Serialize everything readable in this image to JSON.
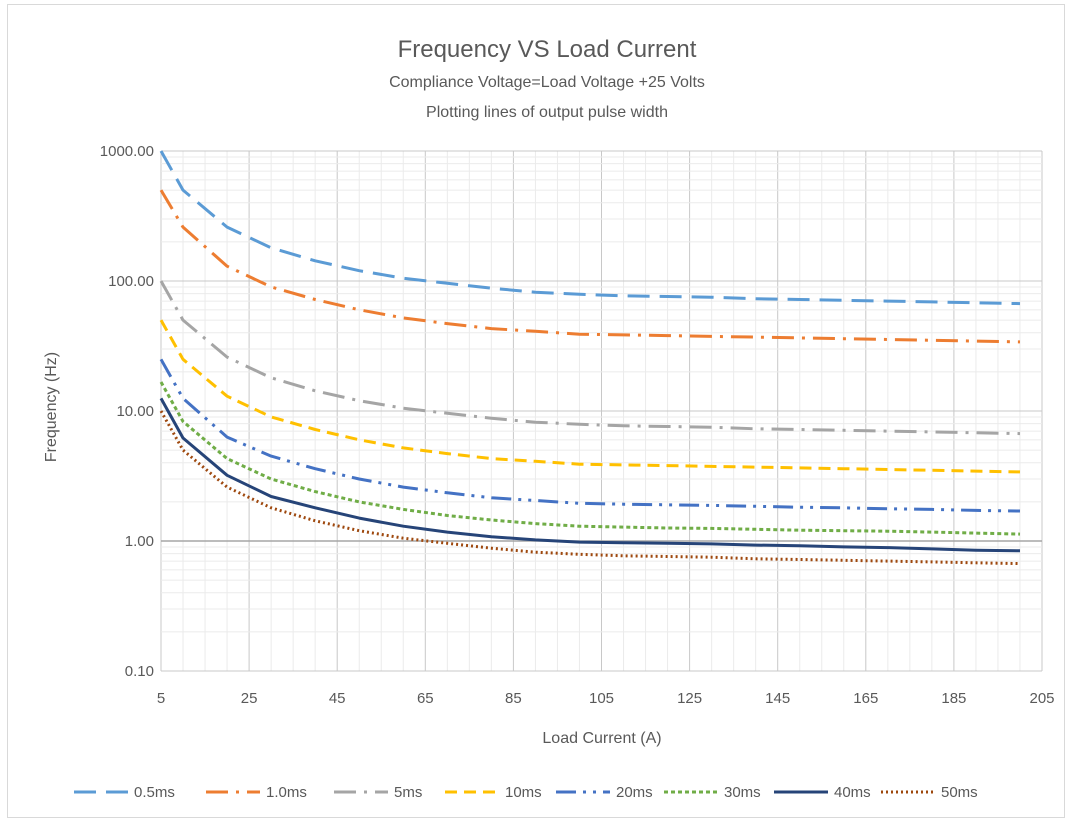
{
  "chart_data": {
    "type": "line",
    "title": "Frequency VS Load Current",
    "subtitle_lines": [
      "Compliance Voltage=Load Voltage +25 Volts",
      "Plotting lines of output pulse width"
    ],
    "xlabel": "Load Current (A)",
    "ylabel": "Frequency (Hz)",
    "x_scale": "linear",
    "y_scale": "log",
    "xlim": [
      5,
      205
    ],
    "ylim": [
      0.1,
      1000
    ],
    "x_ticks": [
      5,
      25,
      45,
      65,
      85,
      105,
      125,
      145,
      165,
      185,
      205
    ],
    "y_ticks": [
      0.1,
      1,
      10,
      100,
      1000
    ],
    "y_tick_labels": [
      "0.10",
      "1.00",
      "10.00",
      "100.00",
      "1000.00"
    ],
    "grid": true,
    "legend_position": "bottom",
    "x": [
      5,
      10,
      20,
      30,
      40,
      50,
      60,
      70,
      80,
      90,
      100,
      110,
      120,
      130,
      140,
      150,
      160,
      170,
      180,
      190,
      200
    ],
    "series": [
      {
        "name": "0.5ms",
        "color": "#5b9bd5",
        "dash": "long-dash",
        "values": [
          1000,
          500,
          260,
          180,
          143,
          120,
          105,
          96,
          88,
          82,
          79,
          77,
          76,
          75,
          73,
          72,
          71,
          70,
          69,
          68,
          67
        ]
      },
      {
        "name": "1.0ms",
        "color": "#ed7d31",
        "dash": "long-dash-dot",
        "values": [
          500,
          260,
          130,
          90,
          72,
          60,
          52,
          47,
          43,
          41,
          39,
          38.5,
          38,
          37.5,
          37,
          36.5,
          36,
          35.5,
          35,
          34.5,
          34
        ]
      },
      {
        "name": "5ms",
        "color": "#a5a5a5",
        "dash": "long-dash-dot",
        "values": [
          100,
          50,
          26,
          18,
          14.3,
          12,
          10.5,
          9.6,
          8.8,
          8.2,
          7.9,
          7.7,
          7.6,
          7.5,
          7.3,
          7.2,
          7.1,
          7.0,
          6.9,
          6.8,
          6.7
        ]
      },
      {
        "name": "10ms",
        "color": "#ffc000",
        "dash": "dash",
        "values": [
          50,
          25,
          13,
          9,
          7.2,
          6,
          5.2,
          4.7,
          4.3,
          4.1,
          3.9,
          3.85,
          3.8,
          3.75,
          3.7,
          3.65,
          3.6,
          3.55,
          3.5,
          3.45,
          3.4
        ]
      },
      {
        "name": "20ms",
        "color": "#4472c4",
        "dash": "long-dash-dot-dot",
        "values": [
          25,
          12.5,
          6.3,
          4.5,
          3.6,
          3.0,
          2.6,
          2.35,
          2.15,
          2.05,
          1.95,
          1.92,
          1.9,
          1.88,
          1.85,
          1.82,
          1.8,
          1.77,
          1.75,
          1.72,
          1.7
        ]
      },
      {
        "name": "30ms",
        "color": "#70ad47",
        "dash": "square-dot",
        "values": [
          16.7,
          8.3,
          4.3,
          3.0,
          2.4,
          2.0,
          1.75,
          1.57,
          1.45,
          1.36,
          1.3,
          1.28,
          1.26,
          1.25,
          1.23,
          1.21,
          1.2,
          1.19,
          1.17,
          1.15,
          1.13
        ]
      },
      {
        "name": "40ms",
        "color": "#264478",
        "dash": "solid",
        "values": [
          12.5,
          6.2,
          3.2,
          2.2,
          1.8,
          1.5,
          1.3,
          1.17,
          1.08,
          1.02,
          0.98,
          0.97,
          0.96,
          0.95,
          0.93,
          0.92,
          0.9,
          0.89,
          0.87,
          0.85,
          0.84
        ]
      },
      {
        "name": "50ms",
        "color": "#9e480e",
        "dash": "dot",
        "values": [
          10,
          5,
          2.6,
          1.8,
          1.43,
          1.2,
          1.05,
          0.96,
          0.88,
          0.82,
          0.79,
          0.77,
          0.76,
          0.75,
          0.73,
          0.72,
          0.71,
          0.7,
          0.69,
          0.68,
          0.67
        ]
      }
    ]
  }
}
